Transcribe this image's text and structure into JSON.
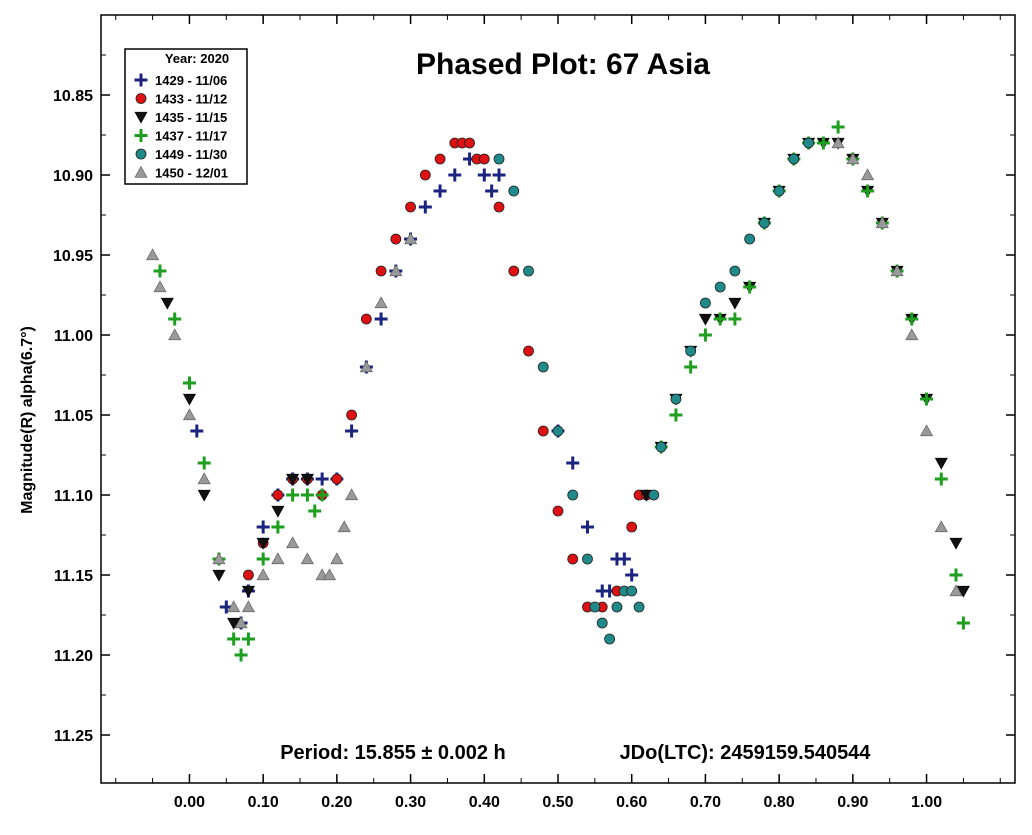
{
  "chart_data": {
    "type": "scatter",
    "title": "Phased Plot: 67 Asia",
    "ylabel": "Magnitude(R) alpha(6.7°)",
    "xlabel": "",
    "xlim": [
      -0.12,
      1.12
    ],
    "ylim": [
      10.8,
      11.28
    ],
    "y_inverted": true,
    "xticks": [
      "0.00",
      "0.10",
      "0.20",
      "0.30",
      "0.40",
      "0.50",
      "0.60",
      "0.70",
      "0.80",
      "0.90",
      "1.00"
    ],
    "yticks": [
      "10.85",
      "10.90",
      "10.95",
      "11.00",
      "11.05",
      "11.10",
      "11.15",
      "11.20",
      "11.25"
    ],
    "annotations": {
      "period": "Period: 15.855 ± 0.002 h",
      "epoch": "JDo(LTC): 2459159.540544"
    },
    "legend": {
      "title": "Year: 2020",
      "position": "top-left"
    },
    "series": [
      {
        "name": "1429 - 11/06",
        "marker": "plus",
        "color": "#1a237e",
        "x": [
          0.0,
          0.01,
          0.05,
          0.07,
          0.08,
          0.1,
          0.12,
          0.14,
          0.16,
          0.18,
          0.2,
          0.22,
          0.24,
          0.26,
          0.28,
          0.3,
          0.32,
          0.34,
          0.36,
          0.38,
          0.4,
          0.41,
          0.42,
          0.5,
          0.52,
          0.54,
          0.56,
          0.57,
          0.58,
          0.59,
          0.6
        ],
        "y": [
          11.03,
          11.06,
          11.17,
          11.18,
          11.16,
          11.12,
          11.1,
          11.09,
          11.09,
          11.09,
          11.09,
          11.06,
          11.02,
          10.99,
          10.96,
          10.94,
          10.92,
          10.91,
          10.9,
          10.89,
          10.9,
          10.91,
          10.9,
          11.06,
          11.08,
          11.12,
          11.16,
          11.16,
          11.14,
          11.14,
          11.15
        ]
      },
      {
        "name": "1433 - 11/12",
        "marker": "circle",
        "color": "#dd1111",
        "x": [
          0.08,
          0.1,
          0.12,
          0.14,
          0.16,
          0.18,
          0.2,
          0.22,
          0.24,
          0.26,
          0.28,
          0.3,
          0.32,
          0.34,
          0.36,
          0.37,
          0.38,
          0.39,
          0.4,
          0.42,
          0.44,
          0.46,
          0.48,
          0.5,
          0.52,
          0.54,
          0.56,
          0.58,
          0.6,
          0.61,
          0.62
        ],
        "y": [
          11.15,
          11.13,
          11.1,
          11.09,
          11.09,
          11.1,
          11.09,
          11.05,
          10.99,
          10.96,
          10.94,
          10.92,
          10.9,
          10.89,
          10.88,
          10.88,
          10.88,
          10.89,
          10.89,
          10.92,
          10.96,
          11.01,
          11.06,
          11.11,
          11.14,
          11.17,
          11.17,
          11.16,
          11.12,
          11.1,
          11.1
        ]
      },
      {
        "name": "1435 - 11/15",
        "marker": "triangle-down",
        "color": "#111111",
        "x": [
          -0.03,
          0.0,
          0.02,
          0.04,
          0.06,
          0.08,
          0.1,
          0.12,
          0.14,
          0.16,
          0.62,
          0.64,
          0.66,
          0.68,
          0.7,
          0.72,
          0.74,
          0.76,
          0.78,
          0.8,
          0.82,
          0.84,
          0.86,
          0.88,
          0.9,
          0.92,
          0.94,
          0.96,
          0.98,
          1.0,
          1.02,
          1.04,
          1.05
        ],
        "y": [
          10.98,
          11.04,
          11.1,
          11.15,
          11.18,
          11.16,
          11.13,
          11.11,
          11.09,
          11.09,
          11.1,
          11.07,
          11.04,
          11.01,
          10.99,
          10.99,
          10.98,
          10.97,
          10.93,
          10.91,
          10.89,
          10.88,
          10.88,
          10.88,
          10.89,
          10.91,
          10.93,
          10.96,
          10.99,
          11.04,
          11.08,
          11.13,
          11.16
        ]
      },
      {
        "name": "1437 - 11/17",
        "marker": "plus",
        "color": "#1e9e1e",
        "x": [
          -0.04,
          -0.02,
          0.0,
          0.02,
          0.04,
          0.06,
          0.07,
          0.08,
          0.1,
          0.12,
          0.14,
          0.16,
          0.17,
          0.18,
          0.64,
          0.66,
          0.68,
          0.7,
          0.72,
          0.74,
          0.76,
          0.78,
          0.8,
          0.82,
          0.84,
          0.86,
          0.88,
          0.9,
          0.92,
          0.94,
          0.96,
          0.98,
          1.0,
          1.02,
          1.04,
          1.05
        ],
        "y": [
          10.96,
          10.99,
          11.03,
          11.08,
          11.14,
          11.19,
          11.2,
          11.19,
          11.14,
          11.12,
          11.1,
          11.1,
          11.11,
          11.1,
          11.07,
          11.05,
          11.02,
          11.0,
          10.99,
          10.99,
          10.97,
          10.93,
          10.91,
          10.89,
          10.88,
          10.88,
          10.87,
          10.89,
          10.91,
          10.93,
          10.96,
          10.99,
          11.04,
          11.09,
          11.15,
          11.18
        ]
      },
      {
        "name": "1449 - 11/30",
        "marker": "circle",
        "color": "#1f8a8a",
        "x": [
          0.42,
          0.44,
          0.46,
          0.48,
          0.5,
          0.52,
          0.54,
          0.55,
          0.56,
          0.57,
          0.58,
          0.59,
          0.6,
          0.61,
          0.63,
          0.64,
          0.66,
          0.68,
          0.7,
          0.72,
          0.74,
          0.76,
          0.78,
          0.8,
          0.82,
          0.84
        ],
        "y": [
          10.89,
          10.91,
          10.96,
          11.02,
          11.06,
          11.1,
          11.14,
          11.17,
          11.18,
          11.19,
          11.17,
          11.16,
          11.16,
          11.17,
          11.1,
          11.07,
          11.04,
          11.01,
          10.98,
          10.97,
          10.96,
          10.94,
          10.93,
          10.91,
          10.89,
          10.88
        ]
      },
      {
        "name": "1450 - 12/01",
        "marker": "triangle-up",
        "color": "#999999",
        "x": [
          -0.05,
          -0.04,
          -0.02,
          0.0,
          0.02,
          0.04,
          0.06,
          0.07,
          0.08,
          0.1,
          0.12,
          0.14,
          0.16,
          0.18,
          0.19,
          0.2,
          0.21,
          0.22,
          0.24,
          0.26,
          0.28,
          0.3,
          0.88,
          0.9,
          0.92,
          0.94,
          0.96,
          0.98,
          1.0,
          1.02,
          1.04
        ],
        "y": [
          10.95,
          10.97,
          11.0,
          11.05,
          11.09,
          11.14,
          11.17,
          11.18,
          11.17,
          11.15,
          11.14,
          11.13,
          11.14,
          11.15,
          11.15,
          11.14,
          11.12,
          11.1,
          11.02,
          10.98,
          10.96,
          10.94,
          10.88,
          10.89,
          10.9,
          10.93,
          10.96,
          11.0,
          11.06,
          11.12,
          11.16
        ]
      }
    ]
  }
}
